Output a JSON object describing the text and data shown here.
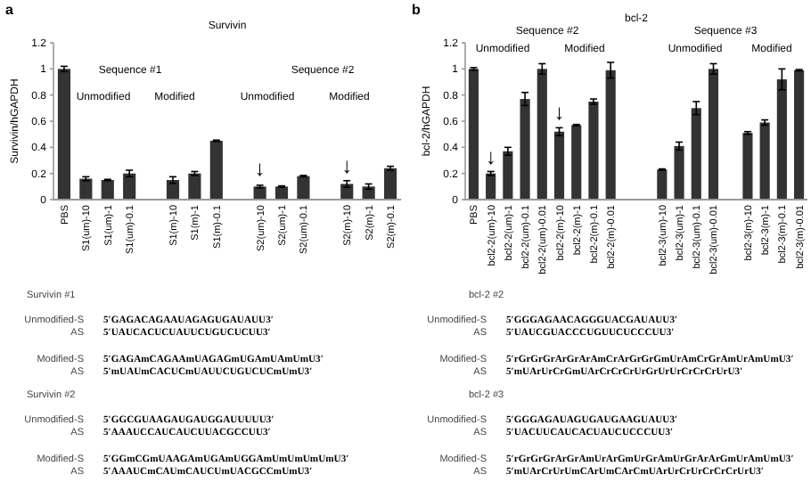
{
  "chart_data": [
    {
      "type": "bar",
      "title": "Survivin",
      "ylabel": "Survivin/hGAPDH",
      "color": "#333333",
      "ylim": [
        0,
        1.2
      ],
      "yticks": [
        0,
        0.2,
        0.4,
        0.6,
        0.8,
        1,
        1.2
      ],
      "categories": [
        "PBS",
        "S1(um)-10",
        "S1(um)-1",
        "S1(um)-0.1",
        null,
        "S1(m)-10",
        "S1(m)-1",
        "S1(m)-0.1",
        null,
        "S2(um)-10",
        "S2(um)-1",
        "S2(um)-0.1",
        null,
        "S2(m)-10",
        "S2(m)-1",
        "S2(m)-0.1"
      ],
      "values": [
        1.0,
        0.16,
        0.15,
        0.2,
        null,
        0.15,
        0.2,
        0.45,
        null,
        0.1,
        0.1,
        0.18,
        null,
        0.12,
        0.1,
        0.24
      ],
      "errors": [
        0.02,
        0.015,
        0.005,
        0.025,
        null,
        0.025,
        0.015,
        0.005,
        null,
        0.01,
        0.005,
        0.005,
        null,
        0.025,
        0.02,
        0.015
      ],
      "annotations": [
        "a",
        "Sequence #1",
        "Unmodified",
        "Modified",
        "Sequence #2",
        "Unmodified",
        "Modified",
        {
          "text": "↓",
          "x": "S2(um)-10",
          "y": 0.13
        },
        {
          "text": "↓",
          "x": "S2(m)-10",
          "y": 0.15
        },
        "Survivin #1",
        "Unmodified-S  5′GAGACAGAAUAGAGUGAUAUU3′",
        "AS  5′UAUCACUCUAUUCUGUCUCUU3′",
        "Modified-S  5′GAGAmCAGAAmUAGAGmUGAmUAmUmU3′",
        "AS  5′mUAUmCACUCmUAUUCUGUCUCmUmU3′",
        "Survivin #2",
        "Unmodified-S  5′GGCGUAAGAUGAUGGAUUUUU3′",
        "AS  5′AAAUCCAUCAUCUUACGCCUU3′",
        "Modified-S  5′GGmCGmUAAGAmUGAmUGGAmUmUmUmUmU3′",
        "AS  5′AAAUCmCAUmCAUCUmUACGCCmUmU3′"
      ]
    },
    {
      "type": "bar",
      "title": "bcl-2",
      "ylabel": "bcl-2/hGAPDH",
      "color": "#333333",
      "ylim": [
        0,
        1.2
      ],
      "yticks": [
        0,
        0.2,
        0.4,
        0.6,
        0.8,
        1,
        1.2
      ],
      "categories": [
        "PBS",
        "bcl2-2(um)-10",
        "bcl2-2(um)-1",
        "bcl2-2(um)-0.1",
        "bcl2-2(um)-0.01",
        "bcl2-2(m)-10",
        "bcl2-2(m)-1",
        "bcl2-2(m)-0.1",
        "bcl2-2(m)-0.01",
        null,
        null,
        "bcl2-3(um)-10",
        "bcl2-3(um)-1",
        "bcl2-3(um)-0.1",
        "bcl2-3(um)-0.01",
        null,
        "bcl2-3(m)-10",
        "bcl2-3(m)-1",
        "bcl2-3(m)-0.1",
        "bcl2-3(m)-0.01"
      ],
      "values": [
        1.0,
        0.2,
        0.37,
        0.77,
        1.0,
        0.52,
        0.57,
        0.75,
        0.99,
        null,
        null,
        0.23,
        0.41,
        0.7,
        1.0,
        null,
        0.51,
        0.59,
        0.92,
        0.99
      ],
      "errors": [
        0.01,
        0.015,
        0.03,
        0.05,
        0.04,
        0.03,
        0.005,
        0.02,
        0.06,
        null,
        null,
        0.005,
        0.03,
        0.05,
        0.04,
        null,
        0.01,
        0.02,
        0.08,
        0.005
      ],
      "annotations": [
        "b",
        "Sequence #2",
        "Unmodified",
        "Modified",
        "Sequence #3",
        "Unmodified",
        "Modified",
        {
          "text": "↓",
          "x": "bcl2-2(um)-10",
          "y": 0.22
        },
        {
          "text": "↓",
          "x": "bcl2-2(m)-10",
          "y": 0.56
        },
        "bcl-2 #2",
        "Unmodified-S  5′GGGAGAACAGGGUACGAUAUU3′",
        "AS  5′UAUCGUACCCUGUUCUCCCUU3′",
        "Modified-S  5′rGrGrGrArGrArAmCrArGrGrGmUrAmCrGrAmUrAmUmU3′",
        "AS  5′mUArUrCrGmUArCrCrCrUrGrUrUrCrCrCrUrU3′",
        "bcl-2 #3",
        "Unmodified-S  5′GGGAGAUAGUGAUGAAGUAUU3′",
        "AS  5′UACUUCAUCACUAUCUCCCUU3′",
        "Modified-S  5′rGrGrGrArGrAmUrArGmUrGrAmUrGrArArGmUrAmUmU3′",
        "AS  5′mUArCrUrUmCArUmCArCmUArUrCrUrCrCrCrUrU3′"
      ]
    }
  ]
}
